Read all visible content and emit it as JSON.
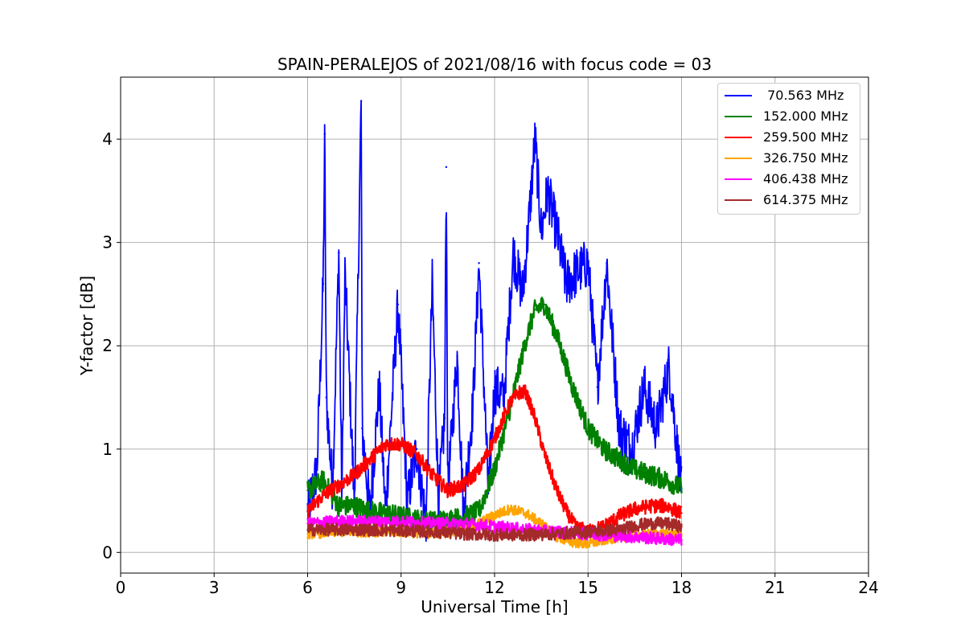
{
  "chart_data": {
    "type": "line",
    "title": "SPAIN-PERALEJOS of 2021/08/16 with focus code = 03",
    "xlabel": "Universal Time [h]",
    "ylabel": "Y-factor [dB]",
    "xlim": [
      0,
      24
    ],
    "ylim": [
      -0.2,
      4.6
    ],
    "xticks": [
      0,
      3,
      6,
      9,
      12,
      15,
      18,
      21,
      24
    ],
    "xtick_labels": [
      "0",
      "3",
      "6",
      "9",
      "12",
      "15",
      "18",
      "21",
      "24"
    ],
    "yticks": [
      0,
      1,
      2,
      3,
      4
    ],
    "ytick_labels": [
      "0",
      "1",
      "2",
      "3",
      "4"
    ],
    "grid": true,
    "legend_position": "top-right",
    "series": [
      {
        "name": " 70.563 MHz",
        "color": "#0000ff",
        "x": [
          6.0,
          6.3,
          6.5,
          6.55,
          6.6,
          6.8,
          7.0,
          7.1,
          7.2,
          7.5,
          7.7,
          7.72,
          7.75,
          8.0,
          8.3,
          8.5,
          8.9,
          9.2,
          9.5,
          9.8,
          10.0,
          10.2,
          10.4,
          10.45,
          10.5,
          10.8,
          11.0,
          11.3,
          11.5,
          11.8,
          12.0,
          12.3,
          12.6,
          12.9,
          13.1,
          13.3,
          13.5,
          13.7,
          14.0,
          14.3,
          14.6,
          15.0,
          15.3,
          15.6,
          16.0,
          16.4,
          16.8,
          17.2,
          17.6,
          18.0
        ],
        "y": [
          0.4,
          0.8,
          2.6,
          4.05,
          1.5,
          0.6,
          2.9,
          0.5,
          2.7,
          0.5,
          4.05,
          4.37,
          1.2,
          0.4,
          1.6,
          0.4,
          2.4,
          0.5,
          1.0,
          0.3,
          2.6,
          0.5,
          1.3,
          3.73,
          0.6,
          1.9,
          0.4,
          1.4,
          2.8,
          0.6,
          1.6,
          1.5,
          2.9,
          2.5,
          3.2,
          4.0,
          3.1,
          3.5,
          3.1,
          2.6,
          2.7,
          2.8,
          1.6,
          2.8,
          1.2,
          1.0,
          1.6,
          1.2,
          1.8,
          0.6
        ]
      },
      {
        "name": "152.000 MHz",
        "color": "#008000",
        "x": [
          6.0,
          6.5,
          7.0,
          7.5,
          8.0,
          8.5,
          9.0,
          9.5,
          10.0,
          10.5,
          11.0,
          11.5,
          12.0,
          12.5,
          13.0,
          13.3,
          13.6,
          14.0,
          14.5,
          15.0,
          15.5,
          16.0,
          16.5,
          17.0,
          17.5,
          18.0
        ],
        "y": [
          0.6,
          0.7,
          0.45,
          0.45,
          0.4,
          0.38,
          0.35,
          0.32,
          0.3,
          0.32,
          0.34,
          0.4,
          0.8,
          1.4,
          2.05,
          2.35,
          2.4,
          2.1,
          1.6,
          1.2,
          1.0,
          0.9,
          0.8,
          0.75,
          0.7,
          0.62
        ]
      },
      {
        "name": "259.500 MHz",
        "color": "#ff0000",
        "x": [
          6.0,
          6.5,
          7.0,
          7.5,
          8.0,
          8.5,
          9.0,
          9.5,
          10.0,
          10.5,
          11.0,
          11.5,
          12.0,
          12.5,
          12.8,
          13.0,
          13.3,
          13.6,
          14.0,
          14.3,
          14.6,
          15.0,
          15.5,
          16.0,
          16.5,
          17.0,
          17.5,
          18.0
        ],
        "y": [
          0.4,
          0.55,
          0.65,
          0.75,
          0.9,
          1.05,
          1.05,
          0.95,
          0.75,
          0.6,
          0.65,
          0.8,
          1.1,
          1.45,
          1.55,
          1.55,
          1.3,
          0.95,
          0.6,
          0.4,
          0.25,
          0.2,
          0.25,
          0.35,
          0.42,
          0.45,
          0.45,
          0.38
        ]
      },
      {
        "name": "326.750 MHz",
        "color": "#ffa500",
        "x": [
          6.0,
          7.0,
          8.0,
          9.0,
          10.0,
          11.0,
          11.5,
          12.0,
          12.5,
          13.0,
          13.5,
          14.0,
          14.5,
          15.0,
          15.5,
          16.0,
          17.0,
          18.0
        ],
        "y": [
          0.18,
          0.2,
          0.2,
          0.2,
          0.18,
          0.22,
          0.28,
          0.36,
          0.42,
          0.38,
          0.28,
          0.15,
          0.1,
          0.08,
          0.12,
          0.15,
          0.18,
          0.18
        ]
      },
      {
        "name": "406.438 MHz",
        "color": "#ff00ff",
        "x": [
          6.0,
          7.0,
          8.0,
          9.0,
          10.0,
          11.0,
          12.0,
          13.0,
          14.0,
          15.0,
          16.0,
          17.0,
          18.0
        ],
        "y": [
          0.28,
          0.3,
          0.3,
          0.3,
          0.28,
          0.28,
          0.25,
          0.22,
          0.2,
          0.18,
          0.16,
          0.14,
          0.12
        ]
      },
      {
        "name": "614.375 MHz",
        "color": "#a52a2a",
        "x": [
          6.0,
          7.0,
          8.0,
          9.0,
          10.0,
          11.0,
          12.0,
          13.0,
          14.0,
          15.0,
          16.0,
          16.5,
          17.0,
          17.5,
          18.0
        ],
        "y": [
          0.22,
          0.22,
          0.22,
          0.21,
          0.2,
          0.18,
          0.17,
          0.17,
          0.18,
          0.2,
          0.22,
          0.26,
          0.28,
          0.28,
          0.25
        ]
      }
    ]
  }
}
